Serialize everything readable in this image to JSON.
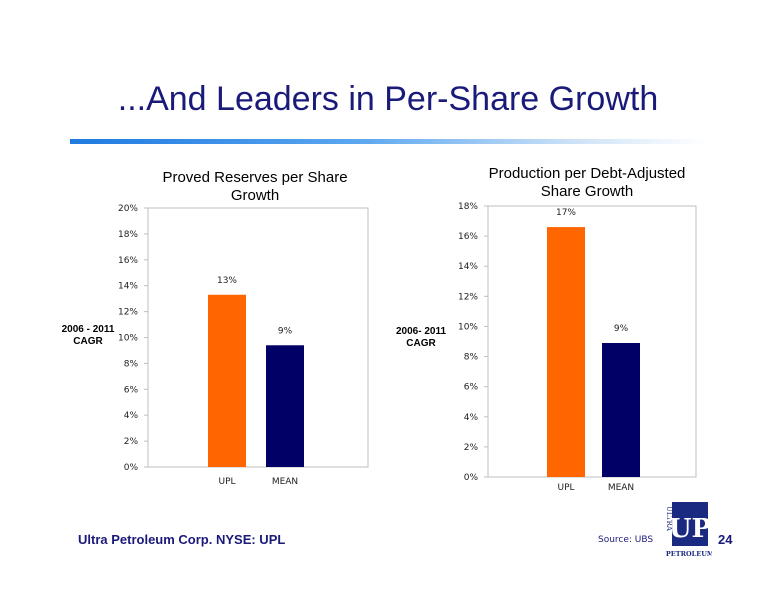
{
  "slide": {
    "title": "...And Leaders in Per-Share Growth",
    "company": "Ultra Petroleum Corp. NYSE: UPL",
    "source": "Source: UBS",
    "page_number": "24",
    "logo": {
      "top_text": "ULTRA",
      "mark": "UP",
      "bottom_text": "PETROLEUM",
      "color": "#1a2a80"
    }
  },
  "chart_data": [
    {
      "type": "bar",
      "title_lines": [
        "Proved Reserves per Share",
        "Growth"
      ],
      "ylabel_lines": [
        "2006 - 2011",
        "CAGR"
      ],
      "categories": [
        "UPL",
        "MEAN"
      ],
      "values": [
        13.3,
        9.4
      ],
      "data_labels": [
        "13%",
        "9%"
      ],
      "colors": [
        "#ff6600",
        "#000066"
      ],
      "ylim": [
        0,
        20
      ],
      "yticks": [
        0,
        2,
        4,
        6,
        8,
        10,
        12,
        14,
        16,
        18,
        20
      ],
      "ytick_labels": [
        "0%",
        "2%",
        "4%",
        "6%",
        "8%",
        "10%",
        "12%",
        "14%",
        "16%",
        "18%",
        "20%"
      ],
      "grid": false
    },
    {
      "type": "bar",
      "title_lines": [
        "Production per Debt-Adjusted",
        "Share Growth"
      ],
      "ylabel_lines": [
        "2006- 2011",
        "CAGR"
      ],
      "categories": [
        "UPL",
        "MEAN"
      ],
      "values": [
        16.6,
        8.9
      ],
      "data_labels": [
        "17%",
        "9%"
      ],
      "colors": [
        "#ff6600",
        "#000066"
      ],
      "ylim": [
        0,
        18
      ],
      "yticks": [
        0,
        2,
        4,
        6,
        8,
        10,
        12,
        14,
        16,
        18
      ],
      "ytick_labels": [
        "0%",
        "2%",
        "4%",
        "6%",
        "8%",
        "10%",
        "12%",
        "14%",
        "16%",
        "18%"
      ],
      "grid": false
    }
  ]
}
